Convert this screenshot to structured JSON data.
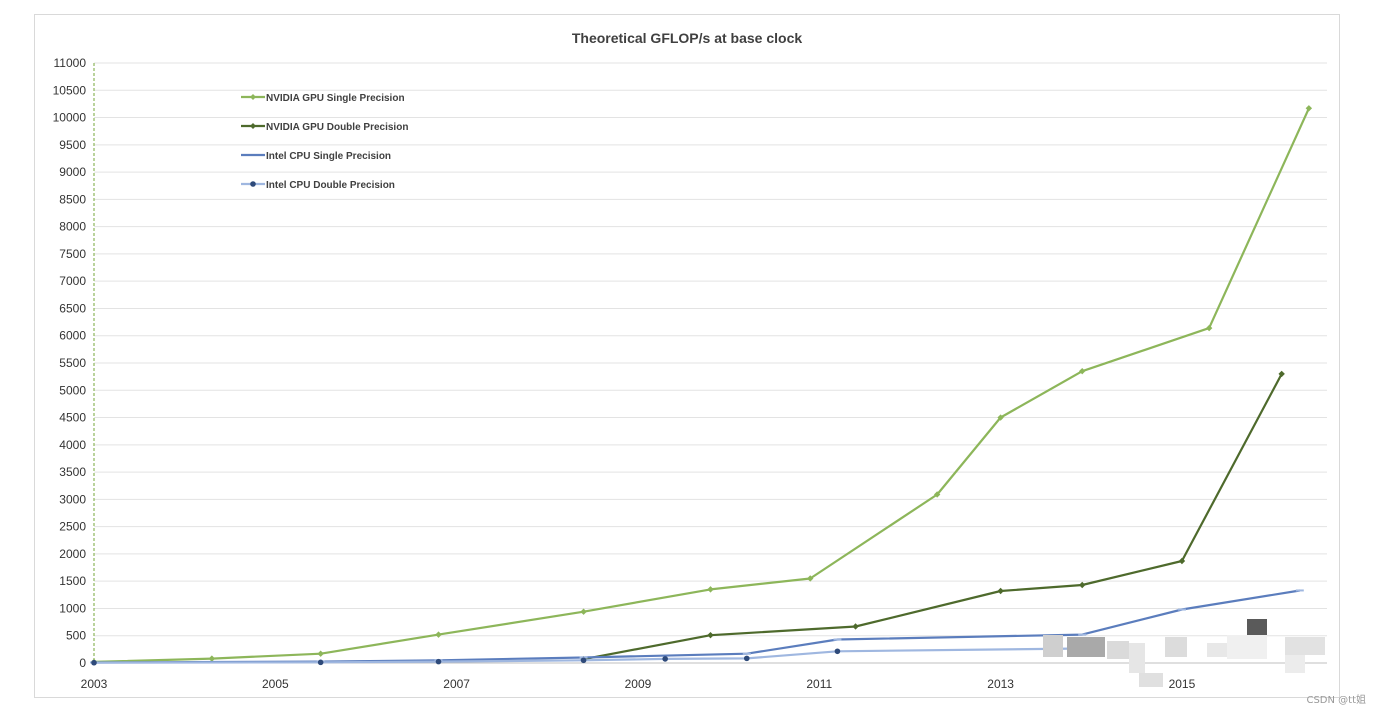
{
  "chart_data": {
    "type": "line",
    "title": "Theoretical GFLOP/s at base clock",
    "xlabel": "",
    "ylabel": "",
    "x_ticks": [
      "2003",
      "2005",
      "2007",
      "2009",
      "2011",
      "2013",
      "2015"
    ],
    "xlim": [
      2003,
      2016.6
    ],
    "ylim": [
      0,
      11000
    ],
    "y_ticks": [
      0,
      500,
      1000,
      1500,
      2000,
      2500,
      3000,
      3500,
      4000,
      4500,
      5000,
      5500,
      6000,
      6500,
      7000,
      7500,
      8000,
      8500,
      9000,
      9500,
      10000,
      10500,
      11000
    ],
    "grid": true,
    "legend_position": "top-left",
    "series": [
      {
        "name": "NVIDIA GPU Single Precision",
        "color": "#8db65a",
        "marker": "diamond",
        "points": [
          [
            2003.0,
            20
          ],
          [
            2004.3,
            80
          ],
          [
            2005.5,
            170
          ],
          [
            2006.8,
            520
          ],
          [
            2008.4,
            940
          ],
          [
            2009.8,
            1350
          ],
          [
            2010.9,
            1550
          ],
          [
            2012.3,
            3090
          ],
          [
            2013.0,
            4500
          ],
          [
            2013.9,
            5350
          ],
          [
            2015.3,
            6140
          ],
          [
            2016.4,
            10170
          ]
        ]
      },
      {
        "name": "NVIDIA GPU Double Precision",
        "color": "#4e6a2c",
        "marker": "diamond",
        "points": [
          [
            2008.4,
            70
          ],
          [
            2009.8,
            510
          ],
          [
            2011.4,
            670
          ],
          [
            2013.0,
            1320
          ],
          [
            2013.9,
            1430
          ],
          [
            2015.0,
            1870
          ],
          [
            2016.1,
            5300
          ]
        ]
      },
      {
        "name": "Intel CPU Single Precision",
        "color": "#5b7dbd",
        "marker": "dash",
        "points": [
          [
            2003.0,
            10
          ],
          [
            2005.5,
            25
          ],
          [
            2006.8,
            50
          ],
          [
            2008.4,
            100
          ],
          [
            2010.2,
            170
          ],
          [
            2011.2,
            430
          ],
          [
            2013.9,
            520
          ],
          [
            2015.0,
            980
          ],
          [
            2016.3,
            1330
          ]
        ]
      },
      {
        "name": "Intel CPU Double Precision",
        "color": "#9fb7e0",
        "marker": "circle",
        "points": [
          [
            2003.0,
            5
          ],
          [
            2005.5,
            12
          ],
          [
            2006.8,
            25
          ],
          [
            2008.4,
            50
          ],
          [
            2009.3,
            75
          ],
          [
            2010.2,
            85
          ],
          [
            2011.2,
            215
          ],
          [
            2013.9,
            265
          ]
        ]
      }
    ]
  },
  "watermark": "CSDN @tt姐"
}
